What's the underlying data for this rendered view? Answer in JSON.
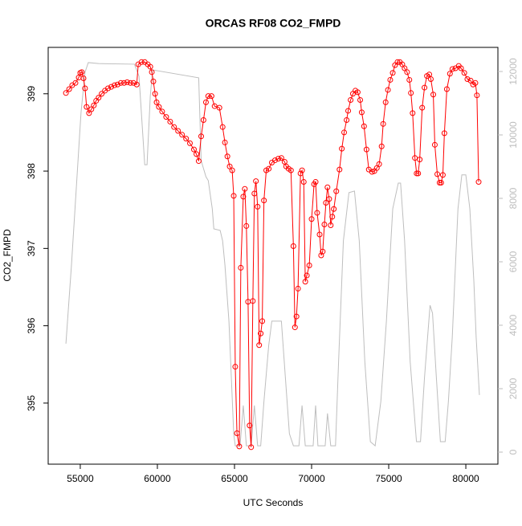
{
  "chart_data": {
    "type": "line",
    "title": "ORCAS RF08 CO2_FMPD",
    "x_label": "UTC Seconds",
    "y_label": "CO2_FMPD",
    "xlim": [
      52920,
      82080
    ],
    "xticks": [
      55000,
      60000,
      65000,
      70000,
      75000,
      80000
    ],
    "ylim": [
      394.21,
      399.6
    ],
    "yticks": [
      395,
      396,
      397,
      398,
      399
    ],
    "y2lim": [
      -380,
      12760
    ],
    "y2ticks": [
      0,
      2000,
      4000,
      6000,
      8000,
      10000,
      12000
    ],
    "series": [
      {
        "color": "#bebebe",
        "axis": "y2",
        "markers": false,
        "x": [
          54070,
          54430,
          54790,
          55050,
          55310,
          55520,
          56190,
          58510,
          58810,
          59180,
          59330,
          59540,
          59690,
          62680,
          62840,
          63150,
          63300,
          63560,
          63660,
          64070,
          64230,
          64380,
          64640,
          64950,
          65050,
          65360,
          65570,
          65770,
          66080,
          66290,
          66500,
          66700,
          66910,
          67220,
          67420,
          68040,
          68300,
          68560,
          68820,
          69180,
          69380,
          69590,
          70100,
          70260,
          70410,
          70880,
          71030,
          71240,
          71550,
          71750,
          72060,
          72420,
          72780,
          73090,
          73450,
          73810,
          74120,
          74490,
          74850,
          75260,
          75620,
          75770,
          76030,
          76390,
          76800,
          77060,
          77320,
          77680,
          77840,
          78090,
          78350,
          78660,
          78870,
          79120,
          79490,
          79740,
          80000,
          80260,
          80520,
          80670,
          80880
        ],
        "values": [
          3420,
          5900,
          8690,
          10710,
          11980,
          12280,
          12250,
          12230,
          11850,
          9060,
          9060,
          11220,
          12050,
          11800,
          9190,
          8680,
          8560,
          7670,
          7040,
          6990,
          6660,
          5900,
          4130,
          580,
          200,
          200,
          1470,
          200,
          200,
          1470,
          200,
          200,
          1600,
          3370,
          4130,
          4130,
          2350,
          580,
          200,
          200,
          1470,
          200,
          200,
          1470,
          200,
          200,
          1220,
          200,
          200,
          2860,
          6660,
          8180,
          8230,
          6660,
          2860,
          330,
          200,
          1600,
          4130,
          7670,
          8480,
          8480,
          6660,
          2860,
          330,
          330,
          2350,
          4630,
          4380,
          2350,
          330,
          330,
          1600,
          3620,
          7670,
          8740,
          8740,
          7670,
          5390,
          3620,
          1800
        ]
      },
      {
        "color": "#ff0000",
        "axis": "y",
        "markers": true,
        "x": [
          54070,
          54280,
          54480,
          54690,
          54900,
          55000,
          55100,
          55210,
          55310,
          55410,
          55570,
          55720,
          55880,
          56030,
          56190,
          56390,
          56600,
          56800,
          57010,
          57220,
          57420,
          57630,
          57840,
          58040,
          58250,
          58450,
          58660,
          58760,
          58970,
          59180,
          59380,
          59540,
          59640,
          59740,
          59850,
          59950,
          60100,
          60310,
          60570,
          60830,
          61080,
          61340,
          61600,
          61860,
          62110,
          62370,
          62530,
          62680,
          62840,
          62990,
          63150,
          63300,
          63510,
          63710,
          64020,
          64230,
          64380,
          64540,
          64690,
          64850,
          64950,
          65050,
          65160,
          65310,
          65410,
          65570,
          65670,
          65770,
          65880,
          65980,
          66080,
          66190,
          66290,
          66390,
          66500,
          66600,
          66700,
          66800,
          66910,
          67060,
          67220,
          67420,
          67630,
          67840,
          68040,
          68250,
          68350,
          68510,
          68660,
          68820,
          68920,
          69020,
          69120,
          69280,
          69380,
          69490,
          69590,
          69690,
          69850,
          70000,
          70160,
          70260,
          70360,
          70520,
          70620,
          70720,
          70830,
          70930,
          71030,
          71140,
          71240,
          71340,
          71440,
          71600,
          71810,
          71960,
          72110,
          72270,
          72370,
          72530,
          72680,
          72840,
          72990,
          73150,
          73250,
          73400,
          73560,
          73710,
          73920,
          74070,
          74230,
          74380,
          74540,
          74640,
          74800,
          74950,
          75100,
          75260,
          75410,
          75570,
          75720,
          75880,
          76030,
          76190,
          76340,
          76440,
          76550,
          76700,
          76810,
          76910,
          77010,
          77170,
          77320,
          77480,
          77630,
          77730,
          77890,
          77990,
          78150,
          78300,
          78400,
          78510,
          78610,
          78770,
          78970,
          79130,
          79330,
          79540,
          79690,
          79900,
          80100,
          80310,
          80470,
          80620,
          80720,
          80830
        ],
        "values": [
          399.01,
          399.06,
          399.11,
          399.14,
          399.21,
          399.27,
          399.28,
          399.2,
          399.07,
          398.83,
          398.75,
          398.8,
          398.85,
          398.91,
          398.95,
          399.0,
          399.04,
          399.07,
          399.09,
          399.11,
          399.12,
          399.14,
          399.14,
          399.15,
          399.14,
          399.14,
          399.12,
          399.38,
          399.41,
          399.41,
          399.38,
          399.35,
          399.28,
          399.16,
          399.0,
          398.89,
          398.83,
          398.77,
          398.7,
          398.64,
          398.57,
          398.52,
          398.47,
          398.42,
          398.36,
          398.28,
          398.22,
          398.13,
          398.45,
          398.66,
          398.89,
          398.97,
          398.97,
          398.84,
          398.82,
          398.57,
          398.37,
          398.19,
          398.06,
          398.01,
          397.68,
          395.47,
          394.61,
          394.44,
          396.75,
          397.67,
          397.77,
          397.29,
          396.31,
          394.71,
          394.43,
          396.32,
          397.71,
          397.87,
          397.54,
          395.75,
          395.9,
          396.06,
          397.62,
          398.01,
          398.03,
          398.11,
          398.14,
          398.16,
          398.17,
          398.12,
          398.06,
          398.03,
          398.01,
          397.03,
          395.98,
          396.12,
          396.48,
          397.97,
          398.01,
          397.86,
          396.57,
          396.65,
          396.78,
          397.38,
          397.83,
          397.86,
          397.46,
          397.18,
          396.91,
          396.96,
          397.31,
          397.59,
          397.79,
          397.64,
          397.3,
          397.41,
          397.51,
          397.74,
          398.02,
          398.29,
          398.5,
          398.66,
          398.78,
          398.92,
          399.0,
          399.04,
          399.02,
          398.92,
          398.76,
          398.58,
          398.28,
          398.02,
          397.99,
          398.0,
          398.04,
          398.09,
          398.32,
          398.61,
          398.89,
          399.05,
          399.18,
          399.27,
          399.37,
          399.41,
          399.41,
          399.38,
          399.33,
          399.28,
          399.18,
          399.01,
          398.75,
          398.17,
          397.97,
          397.97,
          398.15,
          398.82,
          399.08,
          399.23,
          399.25,
          399.19,
          398.99,
          398.34,
          397.96,
          397.85,
          397.85,
          397.95,
          398.49,
          399.06,
          399.26,
          399.32,
          399.33,
          399.36,
          399.33,
          399.27,
          399.19,
          399.17,
          399.12,
          399.14,
          398.98,
          397.86
        ]
      }
    ]
  }
}
